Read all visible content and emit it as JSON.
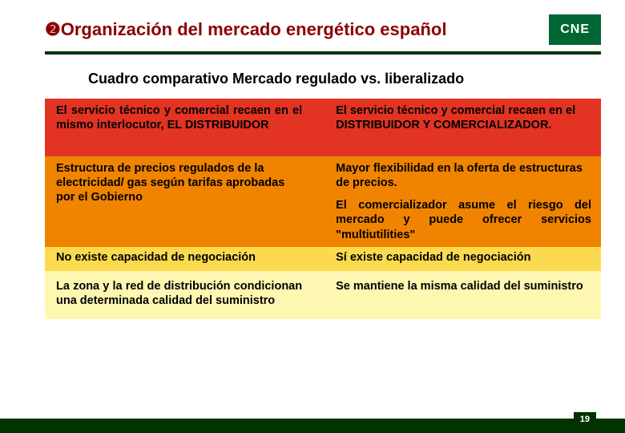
{
  "header": {
    "bullet": "❷",
    "title": "Organización del mercado energético español",
    "logo_text": "CNE",
    "logo_bg": "#006633",
    "rule_color": "#003300",
    "title_color": "#8b0000"
  },
  "subtitle": "Cuadro comparativo Mercado regulado vs. liberalizado",
  "rows": [
    {
      "bg": "#e33322",
      "left": "El servicio técnico y comercial recaen en el mismo interlocutor, EL DISTRIBUIDOR",
      "right": "El servicio técnico y comercial recaen en el DISTRIBUIDOR Y COMERCIALIZADOR."
    },
    {
      "bg": "#f08400",
      "left": "Estructura de precios regulados de la electricidad/ gas según tarifas aprobadas por el Gobierno",
      "right": "Mayor flexibilidad en la oferta de estructuras de precios.",
      "right2": "El comercializador asume el riesgo del mercado y puede ofrecer servicios \"multiutilities\""
    },
    {
      "bg": "#fcda4f",
      "left": "No existe capacidad de negociación",
      "right": "Sí existe capacidad de negociación"
    },
    {
      "bg": "#fef7b2",
      "left": "La zona y la red de distribución condicionan una determinada calidad del suministro",
      "right": "Se mantiene la misma calidad del suministro"
    }
  ],
  "page_number": "19"
}
